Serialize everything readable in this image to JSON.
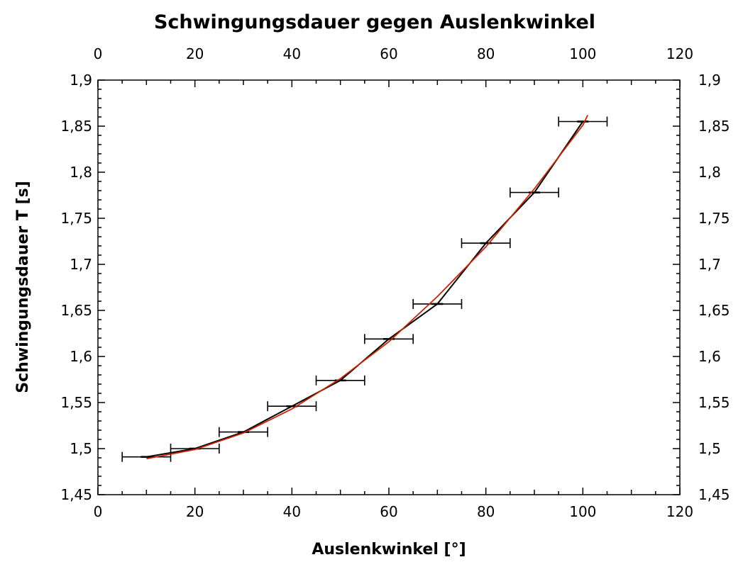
{
  "chart_data": {
    "type": "line",
    "title": "Schwingungsdauer gegen Auslenkwinkel",
    "xlabel": "Auslenkwinkel [°]",
    "ylabel": "Schwingungsdauer T [s]",
    "xlim": [
      0,
      120
    ],
    "ylim": [
      1.45,
      1.9
    ],
    "x_ticks": [
      0,
      20,
      40,
      60,
      80,
      100,
      120
    ],
    "x_tick_labels": [
      "0",
      "20",
      "40",
      "60",
      "80",
      "100",
      "120"
    ],
    "y_ticks": [
      1.45,
      1.5,
      1.55,
      1.6,
      1.65,
      1.7,
      1.75,
      1.8,
      1.85,
      1.9
    ],
    "y_tick_labels": [
      "1,45",
      "1,5",
      "1,55",
      "1,6",
      "1,65",
      "1,7",
      "1,75",
      "1,8",
      "1,85",
      "1,9"
    ],
    "top_axis_mirrors_bottom": true,
    "right_axis_mirrors_left": true,
    "grid": false,
    "legend": "none",
    "series": [
      {
        "kind": "measured",
        "color": "#000000",
        "x": [
          10,
          20,
          30,
          40,
          50,
          60,
          70,
          80,
          90,
          100
        ],
        "y": [
          1.491,
          1.5,
          1.518,
          1.546,
          1.574,
          1.619,
          1.657,
          1.723,
          1.778,
          1.855
        ],
        "x_error": 5,
        "y_error": 0.001
      },
      {
        "kind": "fit",
        "color": "#cc2200",
        "x": [
          10,
          20,
          30,
          40,
          50,
          60,
          70,
          80,
          90,
          100,
          101
        ],
        "y": [
          1.489,
          1.499,
          1.517,
          1.543,
          1.576,
          1.616,
          1.665,
          1.719,
          1.782,
          1.851,
          1.862
        ]
      }
    ]
  }
}
